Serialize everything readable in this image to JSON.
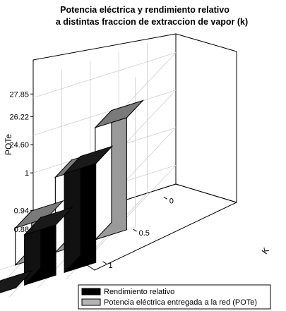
{
  "chart_data": {
    "type": "bar",
    "title": "Potencia eléctrica y rendimiento relativo",
    "subtitle": "a distintas  fraccion de extraccion de vapor (k)",
    "ylabel": "POTe",
    "zlabel": "K",
    "y_ticks_pote": [
      "24.60",
      "26.22",
      "27.85"
    ],
    "y_ticks_rend": [
      "0.88",
      "0.94",
      "1"
    ],
    "k_ticks": [
      "0",
      "0.5",
      "1"
    ],
    "categories": [
      1,
      0.5,
      0
    ],
    "grid": true,
    "legend_position": "bottom",
    "series": [
      {
        "name": "Rendimiento relativo",
        "color": "#000000",
        "k": [
          1,
          0.5,
          0
        ],
        "values": [
          0.88,
          0.935,
          0.988
        ]
      },
      {
        "name": "Potencia eléctrica entregada a la red (POTe)",
        "color": "#a0a0a0",
        "k": [
          1,
          0.5,
          0
        ],
        "values": [
          24.6,
          26.25,
          27.85
        ]
      }
    ]
  }
}
